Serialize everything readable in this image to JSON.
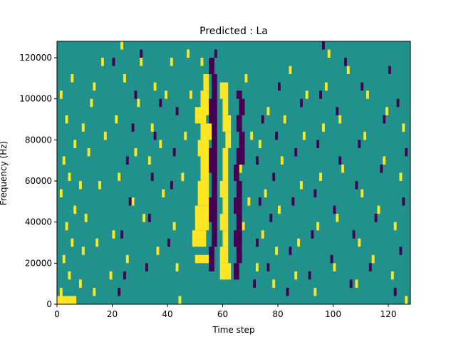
{
  "chart_data": {
    "type": "heatmap",
    "title": "Predicted : La",
    "xlabel": "Time step",
    "ylabel": "Frequency (Hz)",
    "xlim": [
      0,
      128
    ],
    "ylim": [
      0,
      128000
    ],
    "x_ticks": [
      0,
      20,
      40,
      60,
      80,
      100,
      120
    ],
    "y_ticks": [
      0,
      20000,
      40000,
      60000,
      80000,
      100000,
      120000
    ],
    "x_tick_labels": [
      "0",
      "20",
      "40",
      "60",
      "80",
      "100",
      "120"
    ],
    "y_tick_labels": [
      "0",
      "20000",
      "40000",
      "60000",
      "80000",
      "100000",
      "120000"
    ],
    "n_time_steps": 128,
    "n_freq_bins": 64,
    "freq_bin_width_hz": 2000,
    "value_levels": [
      -1,
      0,
      1
    ],
    "colors": {
      "-1": "#440154",
      "0": "#21918c",
      "1": "#fde725"
    },
    "grid": false,
    "legend": "none",
    "description_of_values": "Ternary mask; default level 0 (teal). Listed cells are [time_step_start, freq_bin_start, time_step_count, freq_bin_count, value].",
    "cells": [
      [
        0,
        0,
        7,
        2,
        1
      ],
      [
        1,
        2,
        1,
        2,
        1
      ],
      [
        2,
        10,
        1,
        2,
        1
      ],
      [
        3,
        18,
        1,
        2,
        1
      ],
      [
        1,
        26,
        1,
        2,
        1
      ],
      [
        2,
        34,
        1,
        2,
        1
      ],
      [
        3,
        44,
        1,
        2,
        1
      ],
      [
        1,
        50,
        1,
        2,
        1
      ],
      [
        4,
        6,
        1,
        2,
        1
      ],
      [
        5,
        14,
        1,
        2,
        1
      ],
      [
        4,
        30,
        1,
        2,
        1
      ],
      [
        6,
        38,
        1,
        2,
        1
      ],
      [
        5,
        54,
        1,
        2,
        1
      ],
      [
        6,
        22,
        1,
        2,
        1
      ],
      [
        8,
        4,
        1,
        2,
        1
      ],
      [
        9,
        12,
        1,
        2,
        1
      ],
      [
        10,
        20,
        1,
        2,
        1
      ],
      [
        8,
        28,
        1,
        2,
        1
      ],
      [
        11,
        36,
        1,
        2,
        1
      ],
      [
        9,
        42,
        1,
        2,
        1
      ],
      [
        12,
        48,
        1,
        2,
        1
      ],
      [
        13,
        2,
        1,
        2,
        1
      ],
      [
        14,
        14,
        1,
        2,
        1
      ],
      [
        15,
        28,
        1,
        2,
        1
      ],
      [
        13,
        52,
        1,
        2,
        1
      ],
      [
        16,
        58,
        1,
        2,
        1
      ],
      [
        17,
        40,
        1,
        2,
        1
      ],
      [
        19,
        6,
        1,
        2,
        1
      ],
      [
        20,
        16,
        1,
        2,
        1
      ],
      [
        22,
        30,
        1,
        2,
        1
      ],
      [
        21,
        44,
        1,
        2,
        1
      ],
      [
        24,
        54,
        1,
        2,
        1
      ],
      [
        23,
        62,
        1,
        2,
        1
      ],
      [
        25,
        10,
        1,
        2,
        1
      ],
      [
        27,
        24,
        1,
        2,
        1
      ],
      [
        28,
        36,
        1,
        2,
        1
      ],
      [
        29,
        48,
        1,
        2,
        1
      ],
      [
        30,
        58,
        1,
        2,
        1
      ],
      [
        31,
        20,
        1,
        2,
        1
      ],
      [
        33,
        34,
        1,
        2,
        1
      ],
      [
        34,
        42,
        1,
        2,
        1
      ],
      [
        35,
        52,
        1,
        2,
        1
      ],
      [
        36,
        12,
        1,
        2,
        1
      ],
      [
        38,
        26,
        1,
        2,
        1
      ],
      [
        37,
        38,
        1,
        2,
        1
      ],
      [
        39,
        50,
        1,
        2,
        1
      ],
      [
        41,
        58,
        1,
        2,
        1
      ],
      [
        44,
        0,
        1,
        2,
        1
      ],
      [
        43,
        8,
        1,
        2,
        1
      ],
      [
        42,
        18,
        1,
        2,
        1
      ],
      [
        45,
        30,
        1,
        2,
        1
      ],
      [
        46,
        40,
        1,
        2,
        1
      ],
      [
        47,
        60,
        1,
        2,
        1
      ],
      [
        48,
        50,
        1,
        2,
        1
      ],
      [
        50,
        10,
        5,
        2,
        1
      ],
      [
        49,
        14,
        5,
        4,
        1
      ],
      [
        50,
        18,
        5,
        6,
        1
      ],
      [
        51,
        24,
        4,
        6,
        1
      ],
      [
        52,
        30,
        3,
        6,
        1
      ],
      [
        51,
        36,
        4,
        4,
        1
      ],
      [
        52,
        40,
        4,
        4,
        1
      ],
      [
        50,
        44,
        4,
        4,
        1
      ],
      [
        52,
        46,
        3,
        6,
        1
      ],
      [
        53,
        52,
        2,
        4,
        1
      ],
      [
        55,
        56,
        1,
        2,
        1
      ],
      [
        52,
        58,
        1,
        2,
        1
      ],
      [
        59,
        6,
        4,
        4,
        1
      ],
      [
        59,
        10,
        3,
        4,
        1
      ],
      [
        60,
        14,
        2,
        4,
        1
      ],
      [
        59,
        18,
        3,
        4,
        1
      ],
      [
        60,
        22,
        2,
        4,
        1
      ],
      [
        59,
        26,
        3,
        4,
        1
      ],
      [
        60,
        30,
        2,
        4,
        1
      ],
      [
        60,
        34,
        2,
        4,
        1
      ],
      [
        61,
        38,
        2,
        4,
        1
      ],
      [
        60,
        42,
        3,
        4,
        1
      ],
      [
        60,
        46,
        2,
        4,
        1
      ],
      [
        59,
        50,
        3,
        4,
        1
      ],
      [
        65,
        10,
        1,
        2,
        1
      ],
      [
        67,
        18,
        1,
        2,
        1
      ],
      [
        69,
        24,
        1,
        2,
        1
      ],
      [
        66,
        32,
        1,
        2,
        1
      ],
      [
        70,
        40,
        1,
        2,
        1
      ],
      [
        68,
        54,
        1,
        2,
        1
      ],
      [
        72,
        8,
        1,
        2,
        1
      ],
      [
        74,
        16,
        1,
        2,
        1
      ],
      [
        75,
        26,
        1,
        2,
        1
      ],
      [
        73,
        38,
        1,
        2,
        1
      ],
      [
        76,
        46,
        1,
        2,
        1
      ],
      [
        78,
        4,
        1,
        2,
        1
      ],
      [
        79,
        12,
        1,
        2,
        1
      ],
      [
        80,
        22,
        1,
        2,
        1
      ],
      [
        81,
        34,
        1,
        2,
        1
      ],
      [
        82,
        44,
        1,
        2,
        1
      ],
      [
        84,
        56,
        1,
        2,
        1
      ],
      [
        86,
        6,
        1,
        2,
        1
      ],
      [
        87,
        14,
        1,
        2,
        1
      ],
      [
        88,
        28,
        1,
        2,
        1
      ],
      [
        89,
        40,
        1,
        2,
        1
      ],
      [
        90,
        50,
        1,
        2,
        1
      ],
      [
        93,
        2,
        1,
        2,
        1
      ],
      [
        94,
        18,
        1,
        2,
        1
      ],
      [
        95,
        30,
        1,
        2,
        1
      ],
      [
        96,
        42,
        1,
        2,
        1
      ],
      [
        97,
        52,
        1,
        2,
        1
      ],
      [
        98,
        60,
        1,
        2,
        1
      ],
      [
        100,
        8,
        1,
        2,
        1
      ],
      [
        101,
        20,
        1,
        2,
        1
      ],
      [
        103,
        32,
        1,
        2,
        1
      ],
      [
        102,
        44,
        1,
        2,
        1
      ],
      [
        105,
        56,
        1,
        2,
        1
      ],
      [
        108,
        4,
        1,
        2,
        1
      ],
      [
        109,
        14,
        1,
        2,
        1
      ],
      [
        110,
        26,
        1,
        2,
        1
      ],
      [
        111,
        40,
        1,
        2,
        1
      ],
      [
        112,
        50,
        1,
        2,
        1
      ],
      [
        114,
        10,
        1,
        2,
        1
      ],
      [
        116,
        22,
        1,
        2,
        1
      ],
      [
        118,
        34,
        1,
        2,
        1
      ],
      [
        119,
        46,
        1,
        2,
        1
      ],
      [
        121,
        6,
        1,
        2,
        1
      ],
      [
        122,
        18,
        1,
        2,
        1
      ],
      [
        124,
        30,
        1,
        2,
        1
      ],
      [
        125,
        42,
        1,
        2,
        1
      ],
      [
        126,
        0,
        1,
        2,
        1
      ],
      [
        22,
        2,
        1,
        2,
        -1
      ],
      [
        24,
        6,
        1,
        2,
        -1
      ],
      [
        23,
        16,
        1,
        2,
        -1
      ],
      [
        26,
        24,
        1,
        2,
        -1
      ],
      [
        25,
        34,
        1,
        2,
        -1
      ],
      [
        27,
        42,
        1,
        2,
        -1
      ],
      [
        28,
        50,
        1,
        2,
        -1
      ],
      [
        20,
        58,
        1,
        2,
        -1
      ],
      [
        30,
        60,
        1,
        2,
        -1
      ],
      [
        32,
        8,
        1,
        2,
        -1
      ],
      [
        33,
        20,
        1,
        2,
        -1
      ],
      [
        34,
        30,
        1,
        2,
        -1
      ],
      [
        35,
        40,
        1,
        2,
        -1
      ],
      [
        37,
        48,
        1,
        2,
        -1
      ],
      [
        40,
        14,
        1,
        2,
        -1
      ],
      [
        41,
        28,
        1,
        2,
        -1
      ],
      [
        42,
        36,
        1,
        2,
        -1
      ],
      [
        43,
        46,
        1,
        2,
        -1
      ],
      [
        55,
        8,
        2,
        6,
        -1
      ],
      [
        56,
        14,
        2,
        6,
        -1
      ],
      [
        55,
        20,
        3,
        6,
        -1
      ],
      [
        56,
        26,
        2,
        6,
        -1
      ],
      [
        55,
        32,
        3,
        6,
        -1
      ],
      [
        56,
        38,
        2,
        6,
        -1
      ],
      [
        55,
        44,
        3,
        6,
        -1
      ],
      [
        56,
        50,
        2,
        6,
        -1
      ],
      [
        55,
        56,
        2,
        4,
        -1
      ],
      [
        57,
        60,
        1,
        2,
        -1
      ],
      [
        64,
        6,
        2,
        4,
        -1
      ],
      [
        65,
        10,
        2,
        4,
        -1
      ],
      [
        64,
        14,
        3,
        4,
        -1
      ],
      [
        65,
        18,
        2,
        4,
        -1
      ],
      [
        64,
        22,
        3,
        4,
        -1
      ],
      [
        65,
        26,
        2,
        4,
        -1
      ],
      [
        64,
        30,
        2,
        4,
        -1
      ],
      [
        65,
        34,
        3,
        4,
        -1
      ],
      [
        66,
        38,
        2,
        4,
        -1
      ],
      [
        65,
        42,
        2,
        4,
        -1
      ],
      [
        66,
        46,
        2,
        4,
        -1
      ],
      [
        65,
        50,
        2,
        2,
        -1
      ],
      [
        71,
        4,
        1,
        2,
        -1
      ],
      [
        72,
        14,
        1,
        2,
        -1
      ],
      [
        73,
        24,
        1,
        2,
        -1
      ],
      [
        72,
        34,
        1,
        2,
        -1
      ],
      [
        74,
        44,
        1,
        2,
        -1
      ],
      [
        76,
        8,
        1,
        2,
        -1
      ],
      [
        77,
        20,
        1,
        2,
        -1
      ],
      [
        78,
        30,
        1,
        2,
        -1
      ],
      [
        79,
        40,
        1,
        2,
        -1
      ],
      [
        80,
        52,
        1,
        2,
        -1
      ],
      [
        83,
        2,
        1,
        2,
        -1
      ],
      [
        84,
        12,
        1,
        2,
        -1
      ],
      [
        85,
        24,
        1,
        2,
        -1
      ],
      [
        86,
        36,
        1,
        2,
        -1
      ],
      [
        88,
        48,
        1,
        2,
        -1
      ],
      [
        91,
        6,
        1,
        2,
        -1
      ],
      [
        92,
        16,
        1,
        2,
        -1
      ],
      [
        93,
        26,
        1,
        2,
        -1
      ],
      [
        94,
        38,
        1,
        2,
        -1
      ],
      [
        95,
        50,
        1,
        2,
        -1
      ],
      [
        96,
        62,
        1,
        2,
        -1
      ],
      [
        99,
        10,
        1,
        2,
        -1
      ],
      [
        100,
        22,
        1,
        2,
        -1
      ],
      [
        102,
        34,
        1,
        2,
        -1
      ],
      [
        101,
        46,
        1,
        2,
        -1
      ],
      [
        104,
        58,
        1,
        2,
        -1
      ],
      [
        106,
        4,
        1,
        2,
        -1
      ],
      [
        107,
        16,
        1,
        2,
        -1
      ],
      [
        108,
        28,
        1,
        2,
        -1
      ],
      [
        109,
        38,
        1,
        2,
        -1
      ],
      [
        110,
        52,
        1,
        2,
        -1
      ],
      [
        113,
        8,
        1,
        2,
        -1
      ],
      [
        115,
        20,
        1,
        2,
        -1
      ],
      [
        117,
        32,
        1,
        2,
        -1
      ],
      [
        118,
        44,
        1,
        2,
        -1
      ],
      [
        120,
        56,
        1,
        2,
        -1
      ],
      [
        122,
        2,
        1,
        2,
        -1
      ],
      [
        124,
        12,
        1,
        2,
        -1
      ],
      [
        125,
        24,
        1,
        2,
        -1
      ],
      [
        126,
        36,
        1,
        2,
        -1
      ],
      [
        123,
        48,
        1,
        2,
        -1
      ]
    ]
  }
}
